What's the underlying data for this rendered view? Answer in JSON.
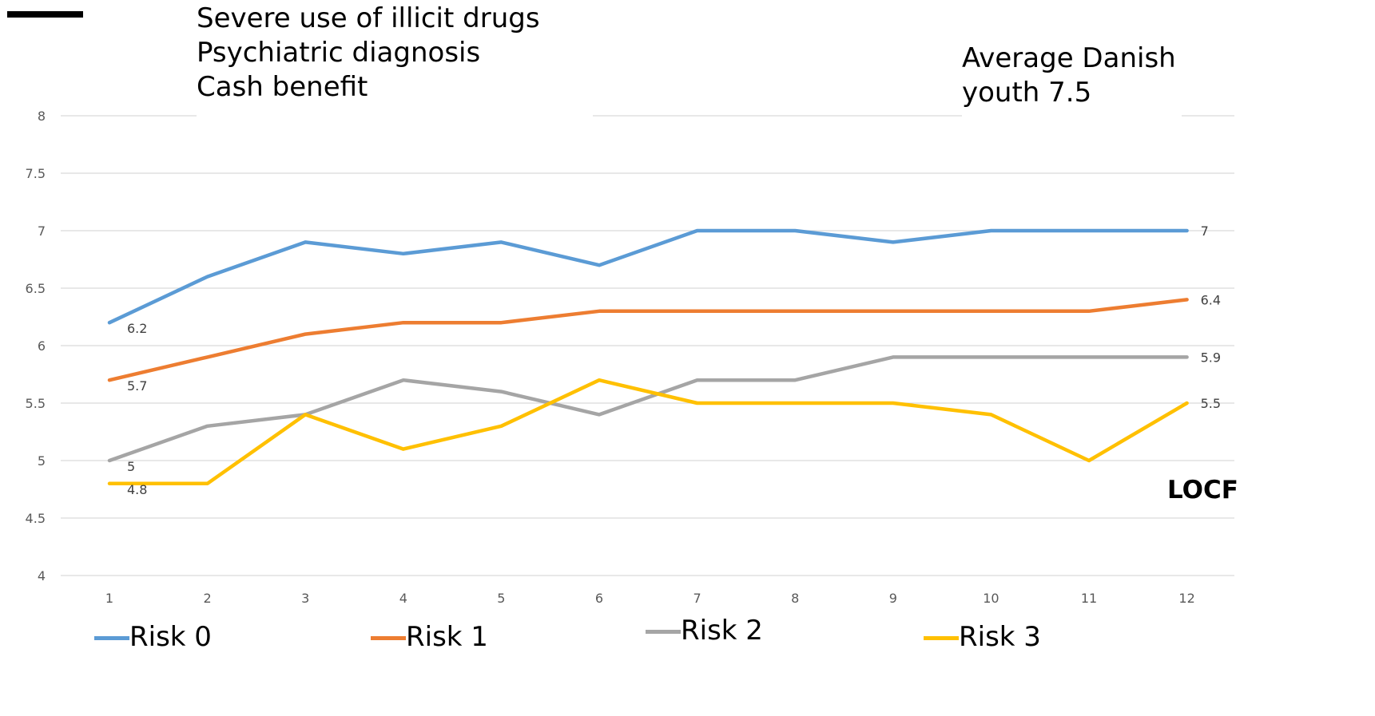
{
  "header_notes": [
    "Severe use of illicit drugs",
    "Psychiatric diagnosis",
    "Cash benefit"
  ],
  "reference_note": [
    "Average Danish",
    "youth 7.5"
  ],
  "corner_label": "LOCF",
  "chart_data": {
    "type": "line",
    "x": [
      1,
      2,
      3,
      4,
      5,
      6,
      7,
      8,
      9,
      10,
      11,
      12
    ],
    "x_tick_labels": [
      "1",
      "2",
      "3",
      "4",
      "5",
      "6",
      "7",
      "8",
      "9",
      "10",
      "11",
      "12"
    ],
    "y_tick_labels": [
      "4",
      "4.5",
      "5",
      "5.5",
      "6",
      "6.5",
      "7",
      "7.5",
      "8"
    ],
    "ylim": [
      4,
      8
    ],
    "grid": true,
    "legend_position": "bottom",
    "series": [
      {
        "name": "Risk 0",
        "color": "#5B9BD5",
        "values": [
          6.2,
          6.6,
          6.9,
          6.8,
          6.9,
          6.7,
          7.0,
          7.0,
          6.9,
          7.0,
          7.0,
          7.0
        ],
        "start_label": "6.2",
        "end_label": "7"
      },
      {
        "name": "Risk 1",
        "color": "#ED7D31",
        "values": [
          5.7,
          5.9,
          6.1,
          6.2,
          6.2,
          6.3,
          6.3,
          6.3,
          6.3,
          6.3,
          6.3,
          6.4
        ],
        "start_label": "5.7",
        "end_label": "6.4"
      },
      {
        "name": "Risk 2",
        "color": "#A5A5A5",
        "values": [
          5.0,
          5.3,
          5.4,
          5.7,
          5.6,
          5.4,
          5.7,
          5.7,
          5.9,
          5.9,
          5.9,
          5.9
        ],
        "start_label": "5",
        "end_label": "5.9"
      },
      {
        "name": "Risk 3",
        "color": "#FFC000",
        "values": [
          4.8,
          4.8,
          5.4,
          5.1,
          5.3,
          5.7,
          5.5,
          5.5,
          5.5,
          5.4,
          5.0,
          5.5
        ],
        "start_label": "4.8",
        "end_label": "5.5"
      }
    ]
  }
}
